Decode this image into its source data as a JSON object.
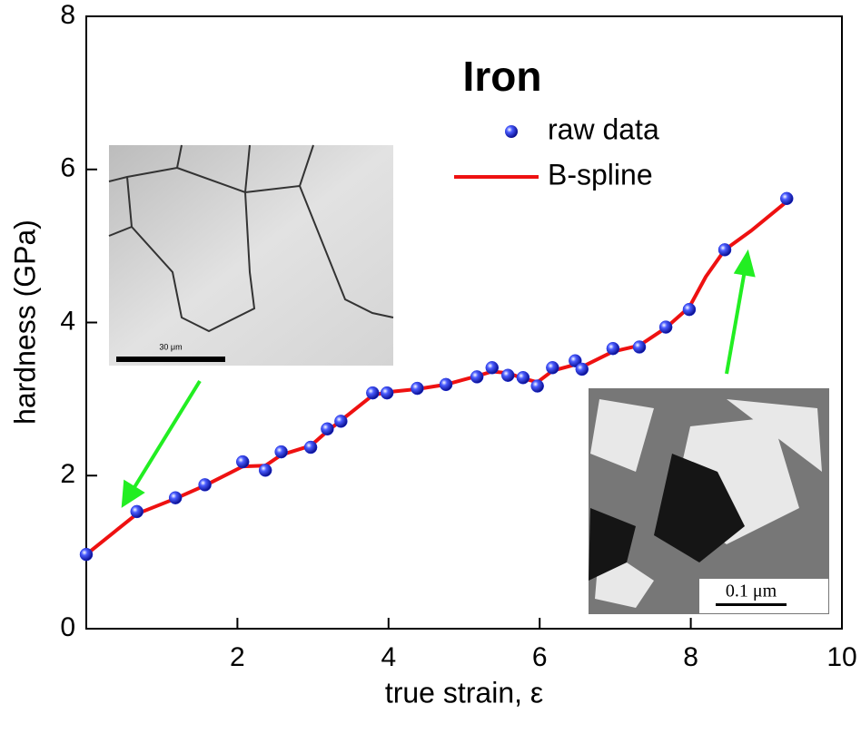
{
  "chart_data": {
    "type": "scatter",
    "title": "Iron",
    "x_label": "true strain, ε",
    "y_label": "hardness (GPa)",
    "xlim": [
      0,
      10
    ],
    "xticks": [
      2,
      4,
      6,
      8,
      10
    ],
    "ylim": [
      0,
      8
    ],
    "yticks": [
      0,
      2,
      4,
      6,
      8
    ],
    "series": [
      {
        "name": "raw data",
        "style": "markers",
        "color": "#1f2fe0",
        "x": [
          0,
          0.67,
          1.18,
          1.57,
          2.07,
          2.37,
          2.58,
          2.97,
          3.19,
          3.37,
          3.79,
          3.98,
          4.38,
          4.76,
          5.17,
          5.37,
          5.58,
          5.78,
          5.97,
          6.17,
          6.47,
          6.56,
          6.97,
          7.32,
          7.67,
          7.98,
          8.45,
          9.27
        ],
        "values": [
          0.97,
          1.53,
          1.71,
          1.88,
          2.18,
          2.07,
          2.31,
          2.37,
          2.61,
          2.71,
          3.08,
          3.08,
          3.14,
          3.19,
          3.29,
          3.41,
          3.31,
          3.28,
          3.17,
          3.41,
          3.5,
          3.39,
          3.66,
          3.68,
          3.94,
          4.17,
          4.95,
          5.62
        ]
      },
      {
        "name": "B-spline",
        "style": "line",
        "color": "#ee1111",
        "x": [
          0,
          0.67,
          1.18,
          1.57,
          2.07,
          2.37,
          2.58,
          2.97,
          3.19,
          3.37,
          3.79,
          3.98,
          4.38,
          4.76,
          5.17,
          5.37,
          5.58,
          5.78,
          5.97,
          6.17,
          6.47,
          6.56,
          6.97,
          7.32,
          7.67,
          7.98,
          8.2,
          8.45,
          8.8,
          9.27
        ],
        "values": [
          0.97,
          1.5,
          1.7,
          1.87,
          2.12,
          2.13,
          2.27,
          2.39,
          2.58,
          2.72,
          3.05,
          3.09,
          3.13,
          3.19,
          3.3,
          3.36,
          3.34,
          3.27,
          3.22,
          3.37,
          3.45,
          3.42,
          3.62,
          3.7,
          3.93,
          4.2,
          4.6,
          4.95,
          5.2,
          5.58
        ]
      }
    ],
    "legend": "upper-right",
    "annotations": [
      "30 μm",
      "0.1 μm"
    ]
  }
}
